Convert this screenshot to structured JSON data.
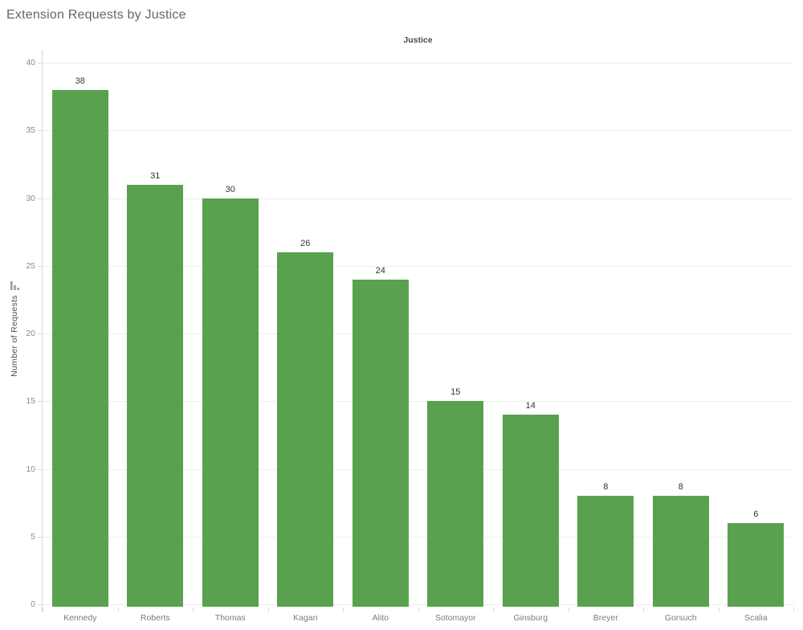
{
  "title": "Extension Requests by Justice",
  "column_field_label": "Justice",
  "y_axis": {
    "title": "Number of Requests",
    "sort_icon": "sort-descending-bars-icon"
  },
  "chart_data": {
    "type": "bar",
    "title": "Extension Requests by Justice",
    "xlabel": "Justice",
    "ylabel": "Number of Requests",
    "categories": [
      "Kennedy",
      "Roberts",
      "Thomas",
      "Kagan",
      "Alito",
      "Sotomayor",
      "Ginsburg",
      "Breyer",
      "Gorsuch",
      "Scalia"
    ],
    "values": [
      38,
      31,
      30,
      26,
      24,
      15,
      14,
      8,
      8,
      6
    ],
    "ylim": [
      0,
      40
    ],
    "ytick_step": 5,
    "yticks": [
      0,
      5,
      10,
      15,
      20,
      25,
      30,
      35,
      40
    ],
    "grid": "horizontal",
    "legend": "none",
    "sort": "descending",
    "data_labels": true,
    "bar_color": "#59a14f"
  },
  "colors": {
    "bar": "#59a14f",
    "title_text": "#666666",
    "value_label_text": "#333333",
    "tick_label_text": "#8a8a8a",
    "category_label_text": "#7b7b7b",
    "axis_line": "#d7d7d7",
    "gridline": "#eeeeee",
    "sort_icon": "#9e9e9e"
  }
}
